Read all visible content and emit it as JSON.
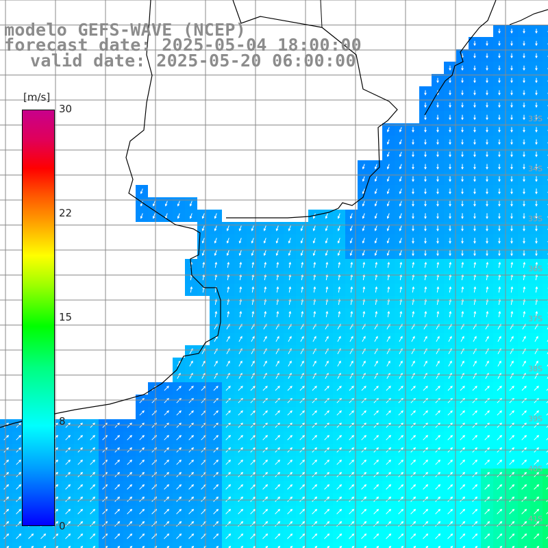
{
  "title": {
    "line1": "modelo GEFS-WAVE (NCEP)",
    "line2": "forecast date: 2025-05-04 18:00:00",
    "line3": "valid date: 2025-05-20 06:00:00"
  },
  "colorbar": {
    "unit": "[m/s]",
    "ticks": [
      "30",
      "22",
      "15",
      "8",
      "0"
    ],
    "colors": [
      "#0000ff",
      "#00a0ff",
      "#00ffff",
      "#00ff00",
      "#ffff00",
      "#ff0000",
      "#c8008c"
    ]
  },
  "map": {
    "variable": "wind speed",
    "land_color": "#ffffff",
    "grid_color": "#8a8a8a",
    "lat_labels": [
      "33S",
      "34S",
      "35S",
      "36S",
      "37S",
      "38S",
      "39S",
      "40S",
      "41S"
    ]
  }
}
